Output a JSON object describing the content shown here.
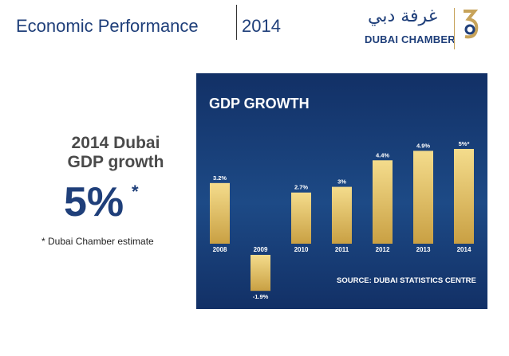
{
  "header": {
    "title": "Economic Performance",
    "year": "2014"
  },
  "logo": {
    "arabic": "غرفة دبي",
    "english": "DUBAI CHAMBER"
  },
  "summary": {
    "title_line1": "2014 Dubai",
    "title_line2": "GDP growth",
    "value": "5%",
    "asterisk": "*",
    "note": "* Dubai Chamber estimate"
  },
  "chart_data": {
    "type": "bar",
    "title": "GDP GROWTH",
    "categories": [
      "2008",
      "2009",
      "2010",
      "2011",
      "2012",
      "2013",
      "2014"
    ],
    "values": [
      3.2,
      -1.9,
      2.7,
      3,
      4.4,
      4.9,
      5
    ],
    "data_labels": [
      "3.2%",
      "-1.9%",
      "2.7%",
      "3%",
      "4.4%",
      "4.9%",
      "5%*"
    ],
    "ylim": [
      -1.9,
      5
    ],
    "xlabel": "",
    "ylabel": "",
    "grid": false,
    "source": "SOURCE: DUBAI STATISTICS CENTRE",
    "colors": {
      "bar_top": "#f4dc8c",
      "bar_bottom": "#c9a043",
      "text": "#ffffff",
      "background": "#163a73"
    }
  }
}
